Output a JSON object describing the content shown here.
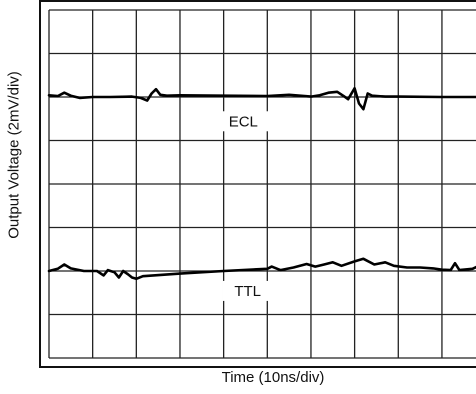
{
  "chart_data": {
    "type": "line",
    "title": "",
    "xlabel": "Time (10ns/div)",
    "ylabel": "Output Voltage (2mV/div)",
    "grid": true,
    "xlim": [
      0,
      10
    ],
    "ylim": [
      0,
      8
    ],
    "series": [
      {
        "name": "ECL",
        "points": [
          [
            0.0,
            6.04
          ],
          [
            0.2,
            6.02
          ],
          [
            0.35,
            6.1
          ],
          [
            0.5,
            6.03
          ],
          [
            0.7,
            5.98
          ],
          [
            1.0,
            6.0
          ],
          [
            1.2,
            6.0
          ],
          [
            1.4,
            6.0
          ],
          [
            1.9,
            6.01
          ],
          [
            2.1,
            5.98
          ],
          [
            2.25,
            5.92
          ],
          [
            2.35,
            6.08
          ],
          [
            2.45,
            6.18
          ],
          [
            2.55,
            6.05
          ],
          [
            2.7,
            6.03
          ],
          [
            3.0,
            6.04
          ],
          [
            4.0,
            6.03
          ],
          [
            5.0,
            6.02
          ],
          [
            5.5,
            6.05
          ],
          [
            6.0,
            6.01
          ],
          [
            6.2,
            6.04
          ],
          [
            6.4,
            6.1
          ],
          [
            6.6,
            6.12
          ],
          [
            6.75,
            6.02
          ],
          [
            6.85,
            5.95
          ],
          [
            7.0,
            6.2
          ],
          [
            7.1,
            5.85
          ],
          [
            7.2,
            5.72
          ],
          [
            7.3,
            6.08
          ],
          [
            7.4,
            6.03
          ],
          [
            7.7,
            6.01
          ],
          [
            8.0,
            6.01
          ],
          [
            9.0,
            6.0
          ],
          [
            10.0,
            6.0
          ]
        ]
      },
      {
        "name": "TTL",
        "points": [
          [
            0.0,
            2.0
          ],
          [
            0.2,
            2.05
          ],
          [
            0.35,
            2.15
          ],
          [
            0.5,
            2.06
          ],
          [
            0.8,
            2.0
          ],
          [
            1.1,
            2.0
          ],
          [
            1.25,
            1.9
          ],
          [
            1.35,
            2.02
          ],
          [
            1.5,
            1.97
          ],
          [
            1.6,
            1.85
          ],
          [
            1.7,
            2.0
          ],
          [
            1.8,
            1.93
          ],
          [
            1.9,
            1.85
          ],
          [
            2.0,
            1.82
          ],
          [
            2.15,
            1.88
          ],
          [
            3.0,
            1.94
          ],
          [
            4.0,
            2.0
          ],
          [
            5.0,
            2.05
          ],
          [
            5.1,
            2.1
          ],
          [
            5.3,
            2.02
          ],
          [
            5.6,
            2.08
          ],
          [
            5.9,
            2.16
          ],
          [
            6.1,
            2.1
          ],
          [
            6.3,
            2.15
          ],
          [
            6.5,
            2.2
          ],
          [
            6.7,
            2.12
          ],
          [
            7.0,
            2.22
          ],
          [
            7.2,
            2.28
          ],
          [
            7.45,
            2.15
          ],
          [
            7.7,
            2.2
          ],
          [
            7.9,
            2.12
          ],
          [
            8.2,
            2.08
          ],
          [
            8.5,
            2.08
          ],
          [
            8.8,
            2.06
          ],
          [
            9.0,
            2.03
          ],
          [
            9.2,
            2.02
          ],
          [
            9.3,
            2.18
          ],
          [
            9.4,
            2.02
          ],
          [
            9.7,
            2.05
          ],
          [
            9.85,
            2.12
          ],
          [
            10.0,
            2.05
          ]
        ]
      }
    ]
  }
}
